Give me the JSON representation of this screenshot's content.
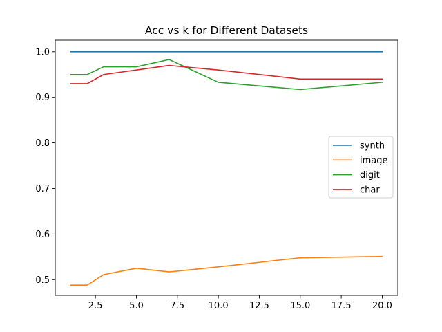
{
  "chart_data": {
    "type": "line",
    "title": "Acc vs k for Different Datasets",
    "xlabel": "",
    "ylabel": "",
    "xlim": [
      0.05,
      20.95
    ],
    "ylim": [
      0.4655,
      1.0255
    ],
    "xticks": [
      2.5,
      5.0,
      7.5,
      10.0,
      12.5,
      15.0,
      17.5,
      20.0
    ],
    "xtick_labels": [
      "2.5",
      "5.0",
      "7.5",
      "10.0",
      "12.5",
      "15.0",
      "17.5",
      "20.0"
    ],
    "yticks": [
      0.5,
      0.6,
      0.7,
      0.8,
      0.9,
      1.0
    ],
    "ytick_labels": [
      "0.5",
      "0.6",
      "0.7",
      "0.8",
      "0.9",
      "1.0"
    ],
    "grid": false,
    "legend_position": "center-right",
    "x": [
      1,
      2,
      3,
      5,
      7,
      10,
      15,
      20
    ],
    "series": [
      {
        "name": "synth",
        "color": "#1f77b4",
        "values": [
          1.0,
          1.0,
          1.0,
          1.0,
          1.0,
          1.0,
          1.0,
          1.0
        ]
      },
      {
        "name": "image",
        "color": "#ff7f0e",
        "values": [
          0.488,
          0.488,
          0.511,
          0.525,
          0.517,
          0.528,
          0.548,
          0.551
        ]
      },
      {
        "name": "digit",
        "color": "#2ca02c",
        "values": [
          0.95,
          0.95,
          0.967,
          0.967,
          0.983,
          0.933,
          0.917,
          0.933
        ]
      },
      {
        "name": "char",
        "color": "#d62728",
        "values": [
          0.93,
          0.93,
          0.95,
          0.96,
          0.97,
          0.96,
          0.94,
          0.94
        ]
      }
    ]
  }
}
